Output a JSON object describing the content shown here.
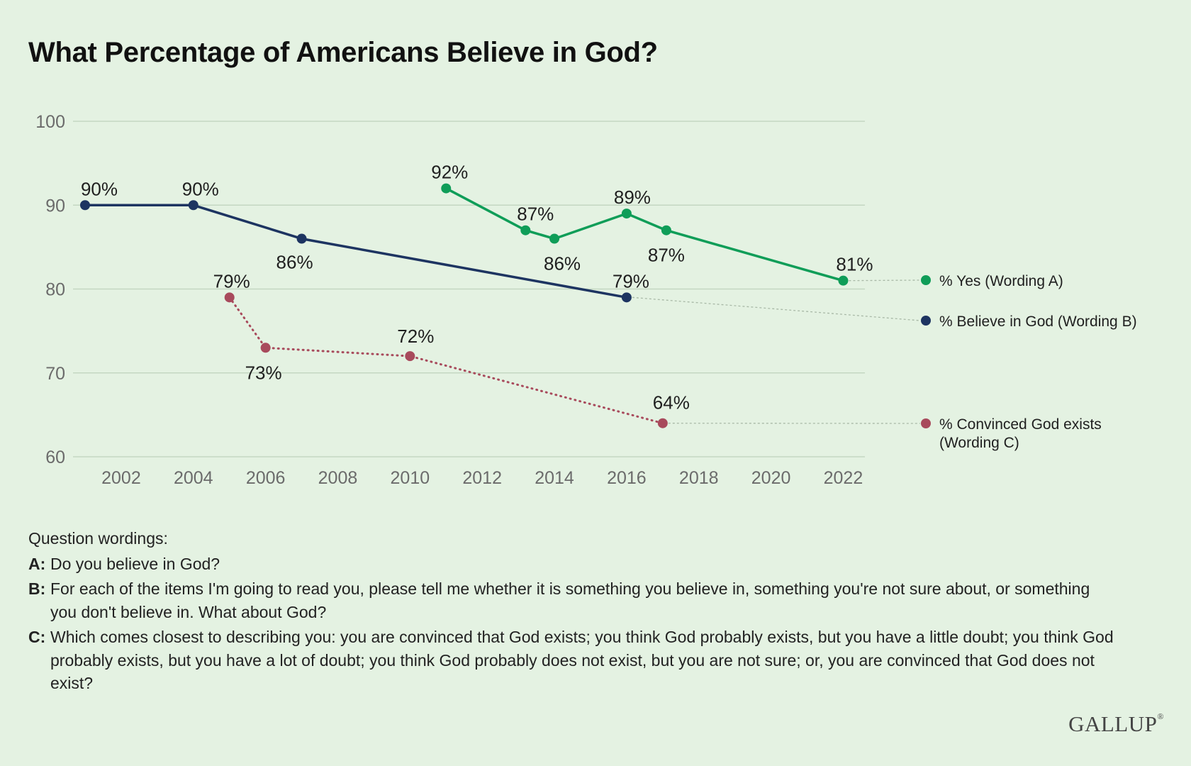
{
  "title": "What Percentage of Americans Believe in God?",
  "chart_data": {
    "type": "line",
    "title": "What Percentage of Americans Believe in God?",
    "xlabel": "",
    "ylabel": "",
    "ylim": [
      60,
      100
    ],
    "xlim": [
      2001,
      2022.6
    ],
    "x_ticks": [
      2002,
      2004,
      2006,
      2008,
      2010,
      2012,
      2014,
      2016,
      2018,
      2020,
      2022
    ],
    "y_ticks": [
      60,
      70,
      80,
      90,
      100
    ],
    "grid": true,
    "legend_position": "right",
    "series": [
      {
        "name": "% Yes (Wording A)",
        "color": "#0f9d58",
        "style": "solid",
        "points": [
          {
            "x": 2011,
            "y": 92,
            "label": "92%"
          },
          {
            "x": 2013.2,
            "y": 87,
            "label": "87%"
          },
          {
            "x": 2014,
            "y": 86,
            "label": "86%"
          },
          {
            "x": 2016,
            "y": 89,
            "label": "89%"
          },
          {
            "x": 2017.1,
            "y": 87,
            "label": "87%"
          },
          {
            "x": 2022,
            "y": 81,
            "label": "81%"
          }
        ]
      },
      {
        "name": "% Believe in God (Wording B)",
        "color": "#1d3461",
        "style": "solid",
        "points": [
          {
            "x": 2001,
            "y": 90,
            "label": "90%"
          },
          {
            "x": 2004,
            "y": 90,
            "label": "90%"
          },
          {
            "x": 2007,
            "y": 86,
            "label": "86%"
          },
          {
            "x": 2016,
            "y": 79,
            "label": "79%"
          }
        ]
      },
      {
        "name": "% Convinced God exists (Wording C)",
        "color": "#a84a5c",
        "style": "dotted",
        "points": [
          {
            "x": 2005,
            "y": 79,
            "label": "79%"
          },
          {
            "x": 2006,
            "y": 73,
            "label": "73%"
          },
          {
            "x": 2010,
            "y": 72,
            "label": "72%"
          },
          {
            "x": 2017,
            "y": 64,
            "label": "64%"
          }
        ]
      }
    ],
    "legend": [
      {
        "lines": [
          "% Yes (Wording A)"
        ],
        "color": "#0f9d58"
      },
      {
        "lines": [
          "% Believe in God (Wording B)"
        ],
        "color": "#1d3461"
      },
      {
        "lines": [
          "% Convinced God exists",
          "(Wording C)"
        ],
        "color": "#a84a5c"
      }
    ]
  },
  "notes": {
    "intro": "Question wordings:",
    "items": [
      {
        "key": "A:",
        "text": "Do you believe in God?"
      },
      {
        "key": "B:",
        "text": "For each of the items I'm going to read you, please tell me whether it is something you believe in, something you're not sure about, or something you don't believe in. What about God?"
      },
      {
        "key": "C:",
        "text": "Which comes closest to describing you: you are convinced that God exists; you think God probably exists, but you have a little doubt; you think God probably exists, but you have a lot of doubt; you think God probably does not exist, but you are not sure; or, you are convinced that God does not exist?"
      }
    ]
  },
  "brand": "GALLUP"
}
